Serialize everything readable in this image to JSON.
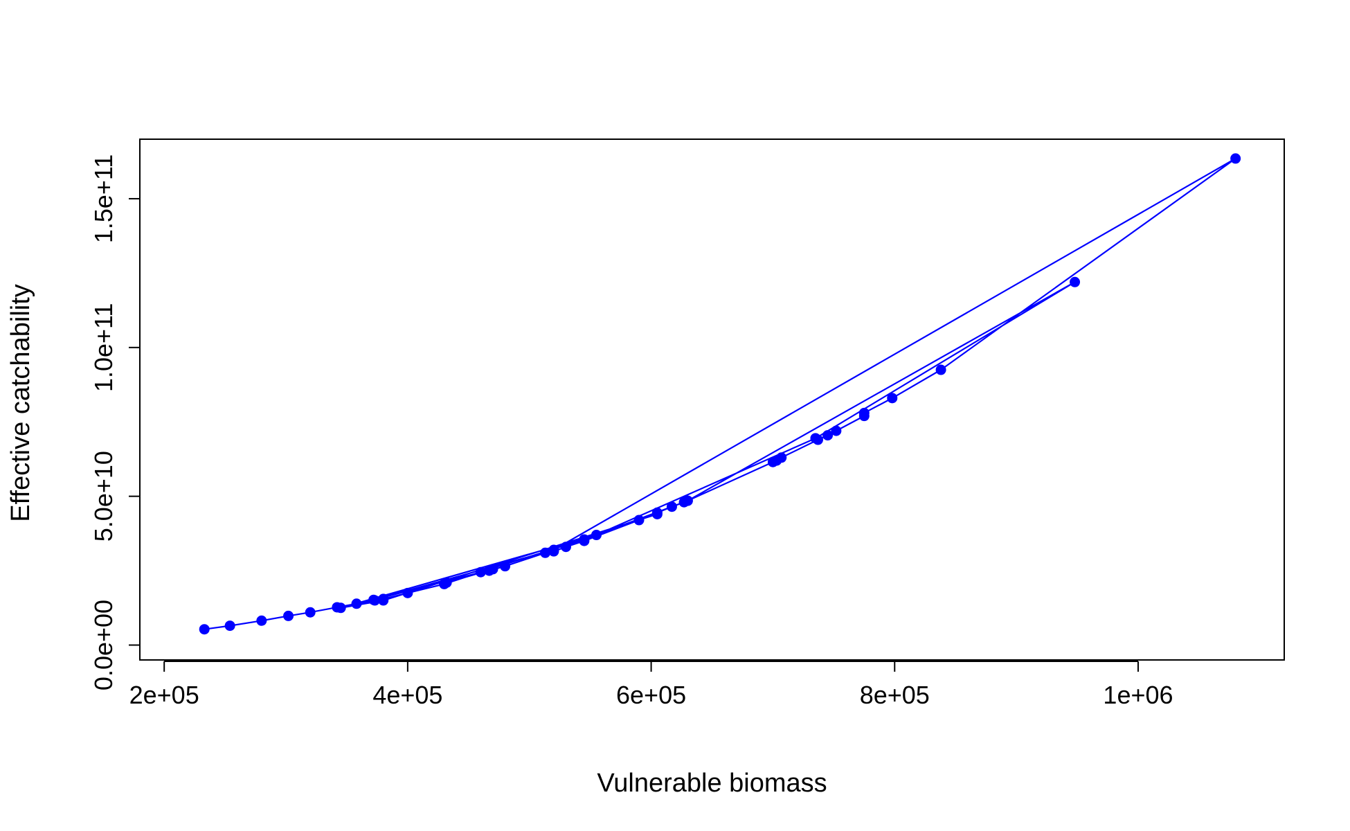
{
  "chart_data": {
    "type": "line",
    "title": "",
    "xlabel": "Vulnerable biomass",
    "ylabel": "Effective catchability",
    "xlim": [
      180000,
      1120000
    ],
    "ylim": [
      -5000000000,
      170000000000
    ],
    "x_ticks": [
      {
        "value": 200000,
        "label": "2e+05"
      },
      {
        "value": 400000,
        "label": "4e+05"
      },
      {
        "value": 600000,
        "label": "6e+05"
      },
      {
        "value": 800000,
        "label": "8e+05"
      },
      {
        "value": 1000000,
        "label": "1e+06"
      }
    ],
    "y_ticks": [
      {
        "value": 0,
        "label": "0.0e+00"
      },
      {
        "value": 50000000000,
        "label": "5.0e+10"
      },
      {
        "value": 100000000000,
        "label": "1.0e+11"
      },
      {
        "value": 150000000000,
        "label": "1.5e+11"
      }
    ],
    "grid": false,
    "legend": "none",
    "colors": {
      "series": "#0000ff",
      "axis": "#000000",
      "background": "#ffffff"
    },
    "series": [
      {
        "x": [
          233000,
          254000,
          280000,
          302000,
          320000,
          342000,
          358000,
          373000,
          380000,
          400000,
          430000,
          460000,
          467000,
          480000,
          513000,
          520000,
          530000,
          545000,
          590000,
          605000,
          617000,
          627000,
          630000,
          700000,
          703000,
          707000,
          737000,
          745000,
          752000,
          775000,
          775000,
          798000,
          838000,
          1080000,
          520000,
          372000,
          470000,
          432000,
          545000,
          630000,
          948000,
          735000,
          555000,
          345000,
          380000,
          605000
        ],
        "y": [
          5300000000,
          6500000000,
          8200000000,
          9800000000,
          11000000000,
          12700000000,
          13900000000,
          15000000000,
          15500000000,
          17500000000,
          20500000000,
          24500000000,
          25000000000,
          26500000000,
          31000000000,
          31500000000,
          33000000000,
          35000000000,
          42000000000,
          44500000000,
          46500000000,
          48000000000,
          48500000000,
          61500000000,
          62000000000,
          63000000000,
          69000000000,
          70500000000,
          72000000000,
          77000000000,
          78000000000,
          83000000000,
          92500000000,
          163500000000,
          32000000000,
          15200000000,
          25500000000,
          21000000000,
          35500000000,
          48500000000,
          122000000000,
          69500000000,
          37000000000,
          12500000000,
          15000000000,
          44000000000
        ]
      }
    ]
  }
}
